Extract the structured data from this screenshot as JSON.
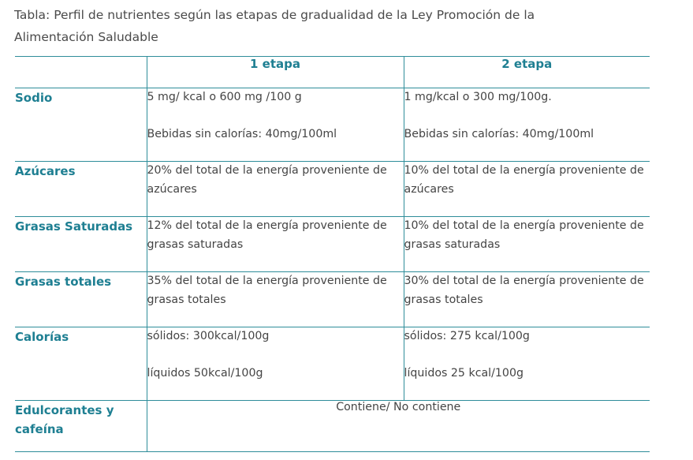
{
  "caption": "Tabla: Perfil de nutrientes según las etapas de gradualidad de la Ley Promoción de la Alimentación Saludable",
  "table": {
    "headers": [
      "",
      "1 etapa",
      "2 etapa"
    ],
    "rows": [
      {
        "label": "Sodio",
        "etapa1": [
          "5 mg/ kcal o 600 mg /100 g",
          "Bebidas sin calorías: 40mg/100ml"
        ],
        "etapa2": [
          "1 mg/kcal o 300 mg/100g.",
          "Bebidas sin calorías: 40mg/100ml"
        ]
      },
      {
        "label": "Azúcares",
        "etapa1": [
          "20% del total de la energía proveniente de azúcares"
        ],
        "etapa2": [
          "10% del total de la energía proveniente de azúcares"
        ]
      },
      {
        "label": "Grasas Saturadas",
        "etapa1": [
          "12% del total de la energía proveniente de grasas saturadas"
        ],
        "etapa2": [
          "10% del total de la energía proveniente de grasas saturadas"
        ]
      },
      {
        "label": "Grasas totales",
        "etapa1": [
          "35% del total de la energía proveniente de grasas totales"
        ],
        "etapa2": [
          "30% del total de la energía proveniente de grasas totales"
        ]
      },
      {
        "label": "Calorías",
        "etapa1": [
          "sólidos: 300kcal/100g",
          "líquidos 50kcal/100g"
        ],
        "etapa2": [
          "sólidos: 275 kcal/100g",
          "líquidos 25 kcal/100g"
        ]
      },
      {
        "label": "Edulcorantes y cafeína",
        "merged": "Contiene/ No contiene"
      }
    ]
  },
  "colors": {
    "accent": "#1e7f92",
    "border": "#2e8d9a",
    "text": "#444444"
  }
}
